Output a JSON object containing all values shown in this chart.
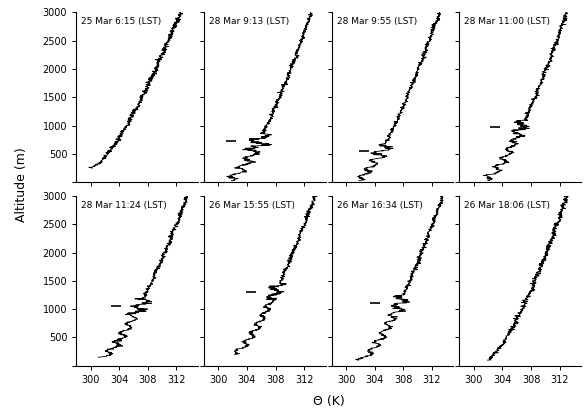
{
  "titles": [
    "25 Mar 6:15 (LST)",
    "28 Mar 9:13 (LST)",
    "28 Mar 9:55 (LST)",
    "28 Mar 11:00 (LST)",
    "28 Mar 11:24 (LST)",
    "26 Mar 15:55 (LST)",
    "26 Mar 16:34 (LST)",
    "26 Mar 18:06 (LST)"
  ],
  "xlabel": "Θ (K)",
  "ylabel": "Altitude (m)",
  "xlim": [
    298,
    315
  ],
  "ylim": [
    0,
    3000
  ],
  "xticks": [
    300,
    304,
    308,
    312
  ],
  "yticks": [
    0,
    500,
    1000,
    1500,
    2000,
    2500,
    3000
  ],
  "figsize": [
    5.87,
    4.11
  ],
  "dpi": 100,
  "line_color": "black",
  "line_width": 0.6,
  "marker_color": "black",
  "marker_lw": 1.2,
  "marker_half_K": 0.7
}
